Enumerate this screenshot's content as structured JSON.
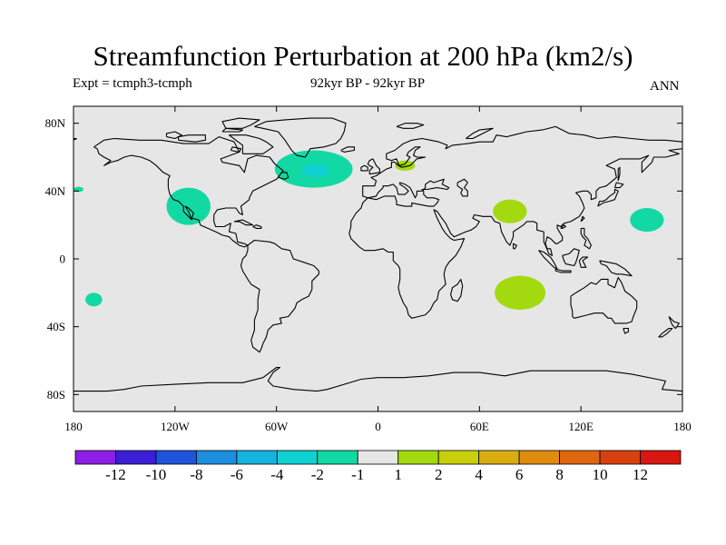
{
  "title": "Streamfunction Perturbation at 200 hPa (km2/s)",
  "subtitle_left": "Expt = tcmph3-tcmph",
  "subtitle_center": "92kyr BP - 92kyr BP",
  "subtitle_right": "ANN",
  "map": {
    "projection": "cylindrical equidistant",
    "lon_range": [
      -180,
      180
    ],
    "lat_range": [
      -90,
      90
    ],
    "background_color": "#e6e6e6",
    "coastline_color": "#000000",
    "lat_ticks": [
      {
        "value": 80,
        "label": "80N"
      },
      {
        "value": 40,
        "label": "40N"
      },
      {
        "value": 0,
        "label": "0"
      },
      {
        "value": -40,
        "label": "40S"
      },
      {
        "value": -80,
        "label": "80S"
      }
    ],
    "lon_ticks": [
      {
        "value": -180,
        "label": "180"
      },
      {
        "value": -120,
        "label": "120W"
      },
      {
        "value": -60,
        "label": "60W"
      },
      {
        "value": 0,
        "label": "0"
      },
      {
        "value": 60,
        "label": "60E"
      },
      {
        "value": 120,
        "label": "120E"
      },
      {
        "value": 180,
        "label": "180"
      }
    ]
  },
  "anomaly_regions": [
    {
      "name": "north-atlantic-negative",
      "lon": -38,
      "lat": 53,
      "rlon": 23,
      "rlat": 11,
      "class": "-2 to -1",
      "color": "#12d9a3"
    },
    {
      "name": "north-atlantic-core",
      "lon": -37,
      "lat": 52,
      "rlon": 8,
      "rlat": 4,
      "class": "-4 to -2",
      "color": "#0fd1d1"
    },
    {
      "name": "north-america-negative",
      "lon": -112,
      "lat": 31,
      "rlon": 13,
      "rlat": 11,
      "class": "-2 to -1",
      "color": "#12d9a3"
    },
    {
      "name": "north-pacific-negative",
      "lon": -177,
      "lat": 41,
      "rlon": 3,
      "rlat": 1.5,
      "class": "-2 to -1",
      "color": "#12d9a3"
    },
    {
      "name": "south-pacific-negative",
      "lon": -168,
      "lat": -24,
      "rlon": 5,
      "rlat": 4,
      "class": "-2 to -1",
      "color": "#12d9a3"
    },
    {
      "name": "europe-positive",
      "lon": 16,
      "lat": 55,
      "rlon": 6,
      "rlat": 3,
      "class": "1 to 2",
      "color": "#a3d90f"
    },
    {
      "name": "central-asia-positive",
      "lon": 78,
      "lat": 28,
      "rlon": 10,
      "rlat": 7,
      "class": "1 to 2",
      "color": "#a3d90f"
    },
    {
      "name": "indian-ocean-positive",
      "lon": 84,
      "lat": -20,
      "rlon": 15,
      "rlat": 10,
      "class": "1 to 2",
      "color": "#a3d90f"
    },
    {
      "name": "west-pacific-negative",
      "lon": 159,
      "lat": 23,
      "rlon": 10,
      "rlat": 7,
      "class": "-2 to -1",
      "color": "#12d9a3"
    }
  ],
  "colorbar": {
    "colors": [
      "#8c1ee6",
      "#3a1fd6",
      "#1f53d9",
      "#1e8ee0",
      "#14b3e0",
      "#0fd1d1",
      "#12d9a3",
      "#e6e6e6",
      "#a3d90f",
      "#c8cf0a",
      "#d9ad0f",
      "#e08c0f",
      "#e0660f",
      "#d9400f",
      "#d9160f"
    ],
    "labels": [
      "-12",
      "-10",
      "-8",
      "-6",
      "-4",
      "-2",
      "-1",
      "1",
      "2",
      "4",
      "6",
      "8",
      "10",
      "12"
    ]
  }
}
